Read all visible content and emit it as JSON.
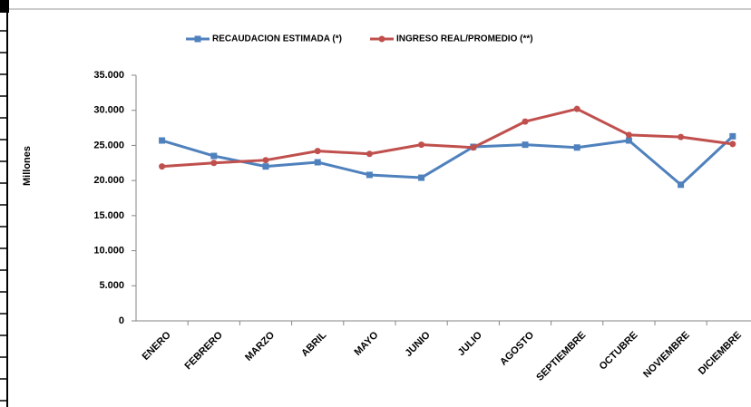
{
  "chart_data": {
    "type": "line",
    "y_label": "Millones",
    "legend": "top",
    "grid": false,
    "categories": [
      "ENERO",
      "FEBRERO",
      "MARZO",
      "ABRIL",
      "MAYO",
      "JUNIO",
      "JULIO",
      "AGOSTO",
      "SEPTIEMBRE",
      "OCTUBRE",
      "NOVIEMBRE",
      "DICIEMBRE"
    ],
    "series": [
      {
        "name": "RECAUDACION  ESTIMADA (*)",
        "color": "#4f81bd",
        "marker": "square",
        "values": [
          25700,
          23500,
          22000,
          22600,
          20800,
          20400,
          24800,
          25100,
          24700,
          25700,
          19400,
          26300
        ]
      },
      {
        "name": "INGRESO REAL/PROMEDIO (**)",
        "color": "#c0504d",
        "marker": "circle",
        "values": [
          22000,
          22500,
          22900,
          24200,
          23800,
          25100,
          24700,
          28400,
          30200,
          26500,
          26200,
          25200
        ]
      }
    ],
    "ylim": [
      0,
      35000
    ],
    "yticks": [
      0,
      {
        "value": 5000,
        "label": "5.000"
      },
      {
        "value": 10000,
        "label": "10.000"
      },
      {
        "value": 15000,
        "label": "15.000"
      },
      {
        "value": 20000,
        "label": "20.000"
      },
      {
        "value": 25000,
        "label": "25.000"
      },
      {
        "value": 30000,
        "label": "30.000"
      },
      {
        "value": 35000,
        "label": "35.000"
      }
    ]
  }
}
